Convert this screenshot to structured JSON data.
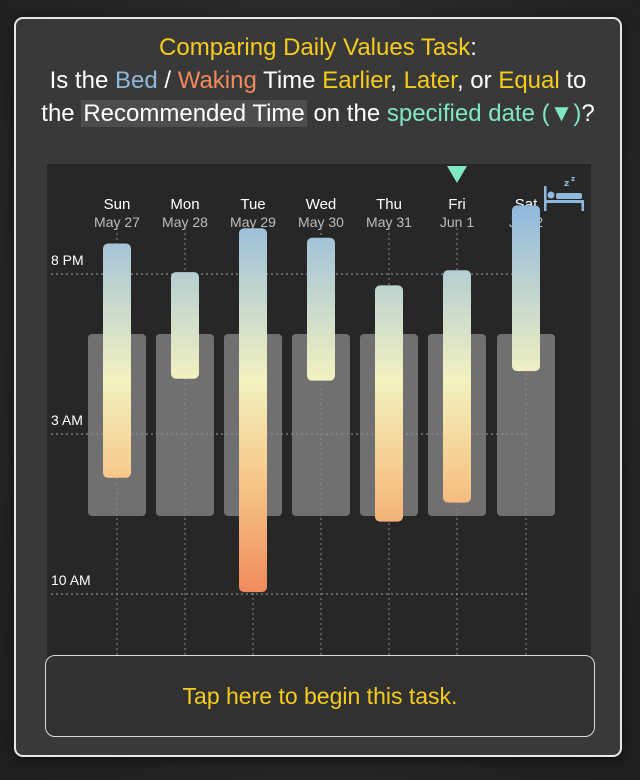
{
  "task": {
    "title": "Comparing Daily Values Task",
    "title_colon": ":",
    "q_is_the": "Is the",
    "q_bed": "Bed",
    "q_slash": "/",
    "q_waking": "Waking",
    "q_time": "Time",
    "q_earlier": "Earlier",
    "q_comma": ",",
    "q_later": "Later",
    "q_or": ", or",
    "q_equal": "Equal",
    "q_to": "to",
    "q_the": "the",
    "q_recommended": "Recommended Time",
    "q_on_the": "on the",
    "q_specified": "specified date (▼)",
    "q_mark": "?"
  },
  "colors": {
    "yellow": "#f5cc1c",
    "bed_blue": "#8fb8dd",
    "wake_orange": "#f08a5c",
    "marker_green": "#7fe8c0",
    "recommended_box": "#8a8a8a"
  },
  "chart_data": {
    "type": "range-bar",
    "days": [
      {
        "dow": "Sun",
        "date": "May 27",
        "bed": "6:40 PM",
        "wake": "4:55 AM",
        "rec_start": "7:45 PM",
        "rec_end": "4:55 AM"
      },
      {
        "dow": "Mon",
        "date": "May 28",
        "bed": "7:55 PM",
        "wake": "12:35 AM",
        "rec_start": "7:45 PM",
        "rec_end": "4:55 AM"
      },
      {
        "dow": "Tue",
        "date": "May 29",
        "bed": "6:00 PM",
        "wake": "9:55 AM",
        "rec_start": "7:45 PM",
        "rec_end": "4:55 AM"
      },
      {
        "dow": "Wed",
        "date": "May 30",
        "bed": "6:25 PM",
        "wake": "12:40 AM",
        "rec_start": "7:45 PM",
        "rec_end": "4:55 AM"
      },
      {
        "dow": "Thu",
        "date": "May 31",
        "bed": "8:30 PM",
        "wake": "6:50 AM",
        "rec_start": "7:45 PM",
        "rec_end": "4:55 AM"
      },
      {
        "dow": "Fri",
        "date": "Jun 1",
        "bed": "7:50 PM",
        "wake": "6:00 AM",
        "rec_start": "7:45 PM",
        "rec_end": "4:55 AM"
      },
      {
        "dow": "Sat",
        "date": "Jun 2",
        "bed": "5:00 PM",
        "wake": "12:15 AM",
        "rec_start": "7:45 PM",
        "rec_end": "4:55 AM"
      }
    ],
    "y_ticks": [
      "8 PM",
      "3 AM",
      "10 AM"
    ],
    "y_range": [
      "3:00 PM",
      "11:40 AM"
    ],
    "specified_day": "Fri",
    "grid": true,
    "bed_icon": "bed-sleep-icon"
  },
  "button": {
    "label": "Tap here to begin this task."
  }
}
